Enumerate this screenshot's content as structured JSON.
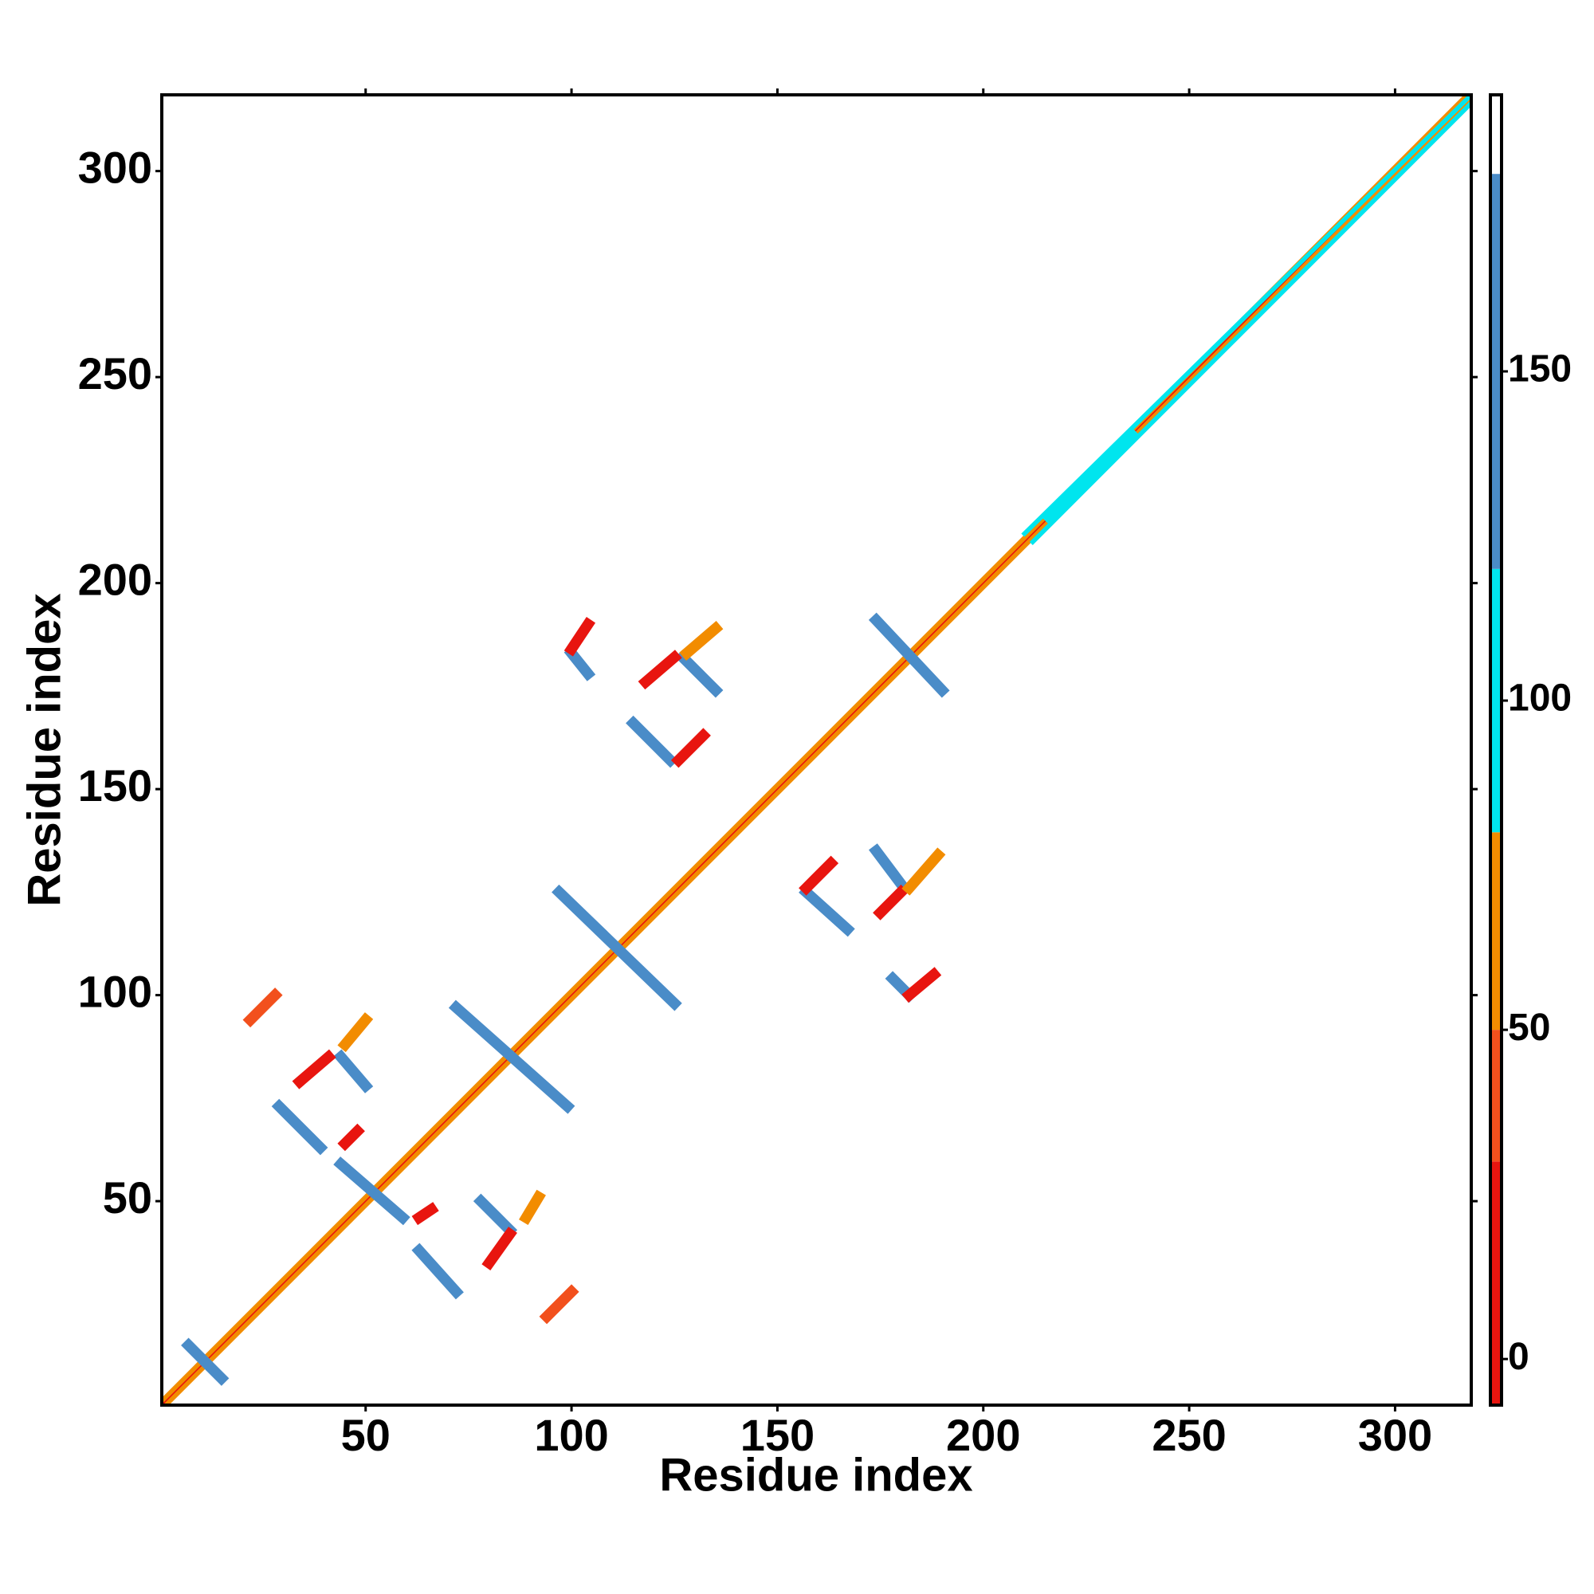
{
  "chart_data": {
    "type": "heatmap",
    "xlabel": "Residue index",
    "ylabel": "Residue index",
    "xlim": [
      0.5,
      318.5
    ],
    "ylim": [
      0.5,
      318.5
    ],
    "xticks": [
      50,
      100,
      150,
      200,
      250,
      300
    ],
    "yticks": [
      50,
      100,
      150,
      200,
      250,
      300
    ],
    "colorbar": {
      "ticks": [
        0,
        50,
        100,
        150
      ],
      "bounds": [
        -7,
        30,
        50,
        80,
        120,
        180,
        192
      ],
      "colors": [
        "#e8150f",
        "#f2501d",
        "#f28c00",
        "#00e5ee",
        "#4a8cc8",
        "#ffffff"
      ]
    },
    "features": [
      {
        "x": [
          1,
          318
        ],
        "y": [
          1,
          318
        ],
        "value": 10
      },
      {
        "x": [
          2,
          318
        ],
        "y": [
          1,
          317
        ],
        "value": 60
      },
      {
        "x": [
          1,
          317
        ],
        "y": [
          2,
          318
        ],
        "value": 60
      },
      {
        "x": [
          210,
          318
        ],
        "y": [
          212,
          318
        ],
        "value": 100
      },
      {
        "x": [
          212,
          318
        ],
        "y": [
          210,
          316
        ],
        "value": 100
      },
      {
        "x": [
          216,
          236
        ],
        "y": [
          216,
          236
        ],
        "value": 100
      },
      {
        "x": [
          7,
          15
        ],
        "y": [
          15,
          7
        ],
        "value": 150
      },
      {
        "x": [
          44,
          59
        ],
        "y": [
          59,
          46
        ],
        "value": 150
      },
      {
        "x": [
          72,
          99
        ],
        "y": [
          97,
          73
        ],
        "value": 150
      },
      {
        "x": [
          97,
          125
        ],
        "y": [
          125,
          98
        ],
        "value": 150
      },
      {
        "x": [
          174,
          190
        ],
        "y": [
          191,
          174
        ],
        "value": 150
      },
      {
        "x": [
          29,
          39
        ],
        "y": [
          73,
          63
        ],
        "value": 150
      },
      {
        "x": [
          44,
          50
        ],
        "y": [
          85,
          78
        ],
        "value": 150
      },
      {
        "x": [
          63,
          72
        ],
        "y": [
          38,
          28
        ],
        "value": 150
      },
      {
        "x": [
          78,
          85
        ],
        "y": [
          50,
          43
        ],
        "value": 150
      },
      {
        "x": [
          115,
          124
        ],
        "y": [
          166,
          157
        ],
        "value": 150
      },
      {
        "x": [
          127,
          135
        ],
        "y": [
          182,
          174
        ],
        "value": 150
      },
      {
        "x": [
          157,
          167
        ],
        "y": [
          125,
          116
        ],
        "value": 150
      },
      {
        "x": [
          174,
          180
        ],
        "y": [
          135,
          127
        ],
        "value": 150
      },
      {
        "x": [
          178,
          182
        ],
        "y": [
          104,
          100
        ],
        "value": 150
      },
      {
        "x": [
          100,
          104
        ],
        "y": [
          183,
          178
        ],
        "value": 150
      },
      {
        "x": [
          22,
          28
        ],
        "y": [
          94,
          100
        ],
        "value": 40
      },
      {
        "x": [
          94,
          100
        ],
        "y": [
          22,
          28
        ],
        "value": 40
      },
      {
        "x": [
          100,
          104
        ],
        "y": [
          184,
          190
        ],
        "value": 10
      },
      {
        "x": [
          126,
          132
        ],
        "y": [
          157,
          163
        ],
        "value": 10
      },
      {
        "x": [
          118,
          125
        ],
        "y": [
          176,
          182
        ],
        "value": 10
      },
      {
        "x": [
          128,
          135
        ],
        "y": [
          183,
          189
        ],
        "value": 60
      },
      {
        "x": [
          157,
          163
        ],
        "y": [
          126,
          132
        ],
        "value": 10
      },
      {
        "x": [
          175,
          180
        ],
        "y": [
          120,
          125
        ],
        "value": 10
      },
      {
        "x": [
          182,
          188
        ],
        "y": [
          100,
          105
        ],
        "value": 10
      },
      {
        "x": [
          182,
          189
        ],
        "y": [
          126,
          134
        ],
        "value": 60
      },
      {
        "x": [
          34,
          41
        ],
        "y": [
          79,
          85
        ],
        "value": 10
      },
      {
        "x": [
          45,
          50
        ],
        "y": [
          88,
          94
        ],
        "value": 60
      },
      {
        "x": [
          80,
          85
        ],
        "y": [
          35,
          42
        ],
        "value": 10
      },
      {
        "x": [
          89,
          92
        ],
        "y": [
          46,
          51
        ],
        "value": 60
      },
      {
        "x": [
          45,
          48
        ],
        "y": [
          64,
          67
        ],
        "value": 10
      },
      {
        "x": [
          63,
          66
        ],
        "y": [
          46,
          48
        ],
        "value": 10
      }
    ]
  }
}
